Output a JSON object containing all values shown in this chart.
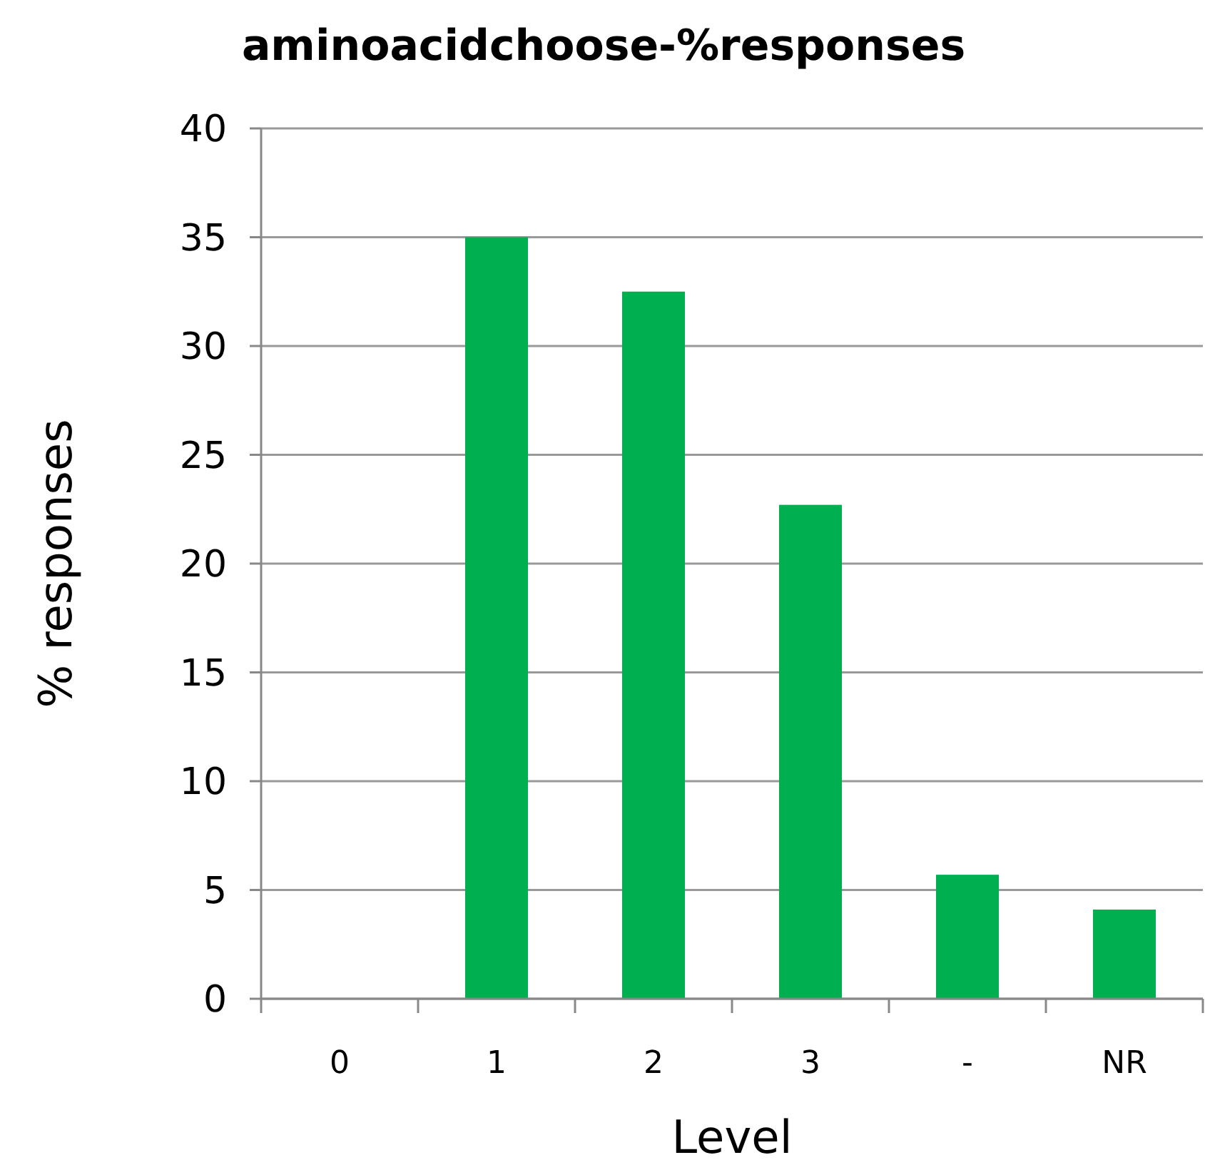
{
  "chart_data": {
    "type": "bar",
    "title": "aminoacidchoose-%responses",
    "xlabel": "Level",
    "ylabel": "% responses",
    "categories": [
      "0",
      "1",
      "2",
      "3",
      "-",
      "NR"
    ],
    "values": [
      0,
      35,
      32.5,
      22.7,
      5.7,
      4.1
    ],
    "color": "#00b050",
    "ylim": [
      0,
      40
    ],
    "yticks": [
      0,
      5,
      10,
      15,
      20,
      25,
      30,
      35,
      40
    ],
    "grid": "y"
  }
}
